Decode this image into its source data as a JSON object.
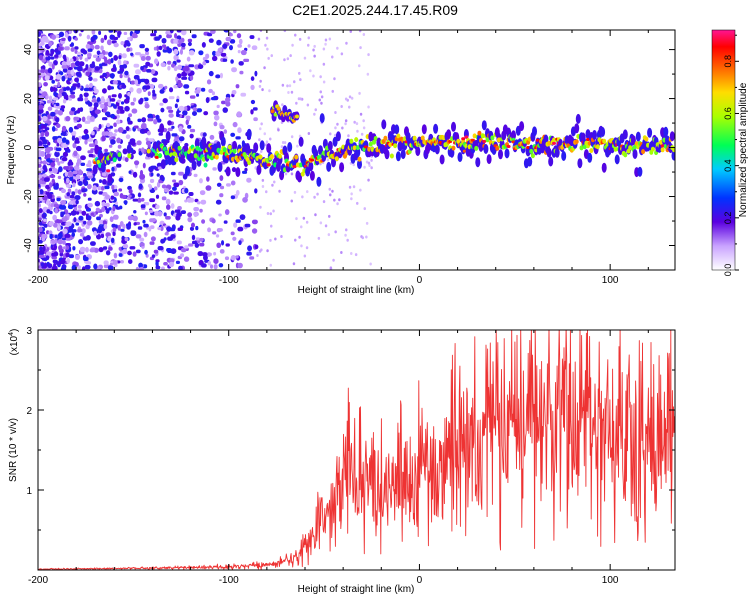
{
  "title": "C2E1.2025.244.17.45.R09",
  "chart_data": [
    {
      "type": "heatmap",
      "xlabel": "Height of straight line (km)",
      "ylabel": "Frequency (Hz)",
      "xlim": [
        -200,
        134
      ],
      "ylim": [
        -50,
        48
      ],
      "x_ticks": [
        "-200",
        "-100",
        "0",
        "100"
      ],
      "y_ticks": [
        "-40",
        "-20",
        "0",
        "20",
        "40"
      ],
      "colorbar": {
        "label": "Normalized spectral amplitude",
        "range": [
          0.0,
          0.92
        ],
        "ticks": [
          "0.0",
          "0.2",
          "0.4",
          "0.6",
          "0.8"
        ]
      },
      "features": {
        "main_trace_hz": [
          [
            -165,
            -5
          ],
          [
            -130,
            -1
          ],
          [
            -110,
            -2
          ],
          [
            -95,
            -3
          ],
          [
            -85,
            -5
          ],
          [
            -75,
            -5
          ],
          [
            -60,
            -8
          ],
          [
            -50,
            -4
          ],
          [
            -40,
            -1
          ],
          [
            -20,
            1
          ],
          [
            0,
            2
          ],
          [
            30,
            2
          ],
          [
            60,
            1
          ],
          [
            90,
            2
          ],
          [
            120,
            1
          ],
          [
            134,
            1
          ]
        ],
        "secondary_trace_hz": [
          [
            -75,
            15
          ],
          [
            -70,
            13
          ],
          [
            -65,
            12
          ]
        ]
      }
    },
    {
      "type": "line",
      "xlabel": "Height of straight line (km)",
      "ylabel": "SNR (10 * v/v)",
      "scale_label": "(x10",
      "scale_exp": "4",
      "scale_close": ")",
      "xlim": [
        -200,
        134
      ],
      "ylim": [
        0,
        3
      ],
      "x_ticks": [
        "-200",
        "-100",
        "0",
        "100"
      ],
      "y_ticks": [
        "1",
        "2",
        "3"
      ],
      "color": "#ee3333",
      "envelope": [
        [
          -200,
          0.01
        ],
        [
          -150,
          0.02
        ],
        [
          -100,
          0.04
        ],
        [
          -80,
          0.06
        ],
        [
          -65,
          0.15
        ],
        [
          -55,
          0.45
        ],
        [
          -45,
          0.75
        ],
        [
          -38,
          1.1
        ],
        [
          -32,
          0.9
        ],
        [
          -25,
          1.0
        ],
        [
          -15,
          1.0
        ],
        [
          -5,
          1.15
        ],
        [
          5,
          1.3
        ],
        [
          20,
          1.45
        ],
        [
          40,
          1.6
        ],
        [
          60,
          1.75
        ],
        [
          80,
          1.7
        ],
        [
          100,
          1.65
        ],
        [
          120,
          1.6
        ],
        [
          134,
          1.55
        ]
      ]
    }
  ]
}
